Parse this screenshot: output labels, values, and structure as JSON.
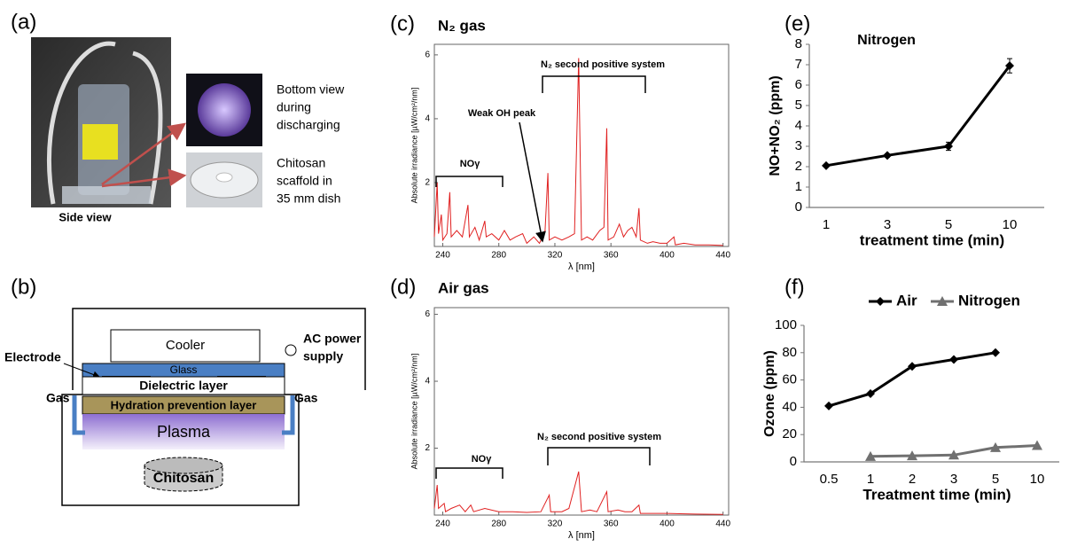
{
  "figure": {
    "panel_a": {
      "label": "(a)",
      "side_view": "Side view",
      "bottom_view": [
        "Bottom view",
        "during",
        "discharging"
      ],
      "dish": [
        "Chitosan",
        "scaffold in",
        "35 mm dish"
      ]
    },
    "panel_b": {
      "label": "(b)",
      "cooler": "Cooler",
      "power": [
        "AC power",
        "supply"
      ],
      "electrode": "Electrode",
      "glass": "Glass",
      "dielectric": "Dielectric layer",
      "gas_left": "Gas",
      "gas_right": "Gas",
      "hydration": "Hydration prevention layer",
      "plasma": "Plasma",
      "chitosan": "Chitosan"
    }
  },
  "chart_data": [
    {
      "type": "spectrum",
      "label": "(c)",
      "title": "N₂ gas",
      "y_label": "Absolute irradiance [µW/cm²/nm]",
      "x_label": "λ [nm]",
      "annotations": [
        "N₂ second positive system",
        "Weak OH peak",
        "NOγ"
      ],
      "xlim": [
        234,
        444
      ],
      "xticks": [
        240,
        280,
        320,
        360,
        400,
        440
      ],
      "ylim": [
        0,
        6.33
      ],
      "yticks": [
        2,
        4,
        6
      ],
      "color": "#e02020",
      "x": [
        234,
        236,
        237,
        239,
        240,
        243,
        245,
        246,
        250,
        254,
        258,
        259,
        263,
        266,
        270,
        271,
        275,
        280,
        284,
        288,
        292,
        297,
        300,
        305,
        309,
        313,
        315,
        316,
        320,
        325,
        330,
        334,
        337,
        339,
        343,
        347,
        352,
        355,
        357,
        358,
        362,
        366,
        369,
        372,
        375,
        378,
        380,
        381,
        386,
        390,
        395,
        400,
        405,
        406,
        412,
        420,
        430,
        440
      ],
      "values": [
        0.3,
        2.0,
        0.4,
        1.0,
        0.2,
        0.4,
        1.7,
        0.3,
        0.5,
        0.3,
        1.3,
        0.3,
        0.6,
        0.2,
        0.8,
        0.3,
        0.4,
        0.2,
        0.5,
        0.2,
        0.3,
        0.4,
        0.1,
        0.3,
        0.1,
        0.5,
        2.3,
        0.2,
        0.3,
        0.2,
        0.3,
        0.4,
        5.9,
        0.2,
        0.3,
        0.2,
        0.5,
        0.6,
        3.7,
        0.2,
        0.3,
        0.7,
        0.3,
        0.5,
        0.6,
        0.3,
        1.2,
        0.2,
        0.1,
        0.15,
        0.1,
        0.1,
        0.3,
        0.05,
        0.1,
        0.05,
        0.05,
        0.03
      ]
    },
    {
      "type": "spectrum",
      "label": "(d)",
      "title": "Air gas",
      "y_label": "Absolute irradiance [µW/cm²/nm]",
      "x_label": "λ [nm]",
      "annotations": [
        "N₂ second positive system",
        "NOγ"
      ],
      "xlim": [
        234,
        444
      ],
      "xticks": [
        240,
        280,
        320,
        360,
        400,
        440
      ],
      "ylim": [
        0,
        6.2
      ],
      "yticks": [
        2,
        4,
        6
      ],
      "color": "#e02020",
      "x": [
        234,
        236,
        237,
        241,
        242,
        246,
        252,
        256,
        260,
        262,
        270,
        280,
        290,
        300,
        310,
        316,
        317,
        325,
        330,
        337,
        339,
        345,
        350,
        357,
        358,
        365,
        370,
        375,
        380,
        381,
        390,
        400,
        420,
        440
      ],
      "values": [
        0.2,
        0.9,
        0.2,
        0.35,
        0.1,
        0.2,
        0.3,
        0.1,
        0.3,
        0.1,
        0.2,
        0.1,
        0.1,
        0.08,
        0.1,
        0.6,
        0.1,
        0.1,
        0.2,
        1.3,
        0.1,
        0.15,
        0.1,
        0.7,
        0.1,
        0.15,
        0.1,
        0.1,
        0.3,
        0.05,
        0.05,
        0.05,
        0.03,
        0.02
      ]
    },
    {
      "type": "line",
      "label": "(e)",
      "title": "Nitrogen",
      "y_label": "NO+NO₂ (ppm)",
      "x_label": "treatment time (min)",
      "categories": [
        "1",
        "3",
        "5",
        "10"
      ],
      "series": [
        {
          "color": "#000000",
          "marker": "diamond",
          "values": [
            2.05,
            2.55,
            3.0,
            6.95
          ],
          "errors": [
            0.05,
            0.08,
            0.2,
            0.35
          ]
        }
      ],
      "ylim": [
        0,
        8
      ],
      "yticks": [
        0,
        1,
        2,
        3,
        4,
        5,
        6,
        7,
        8
      ]
    },
    {
      "type": "line",
      "label": "(f)",
      "y_label": "Ozone (ppm)",
      "x_label": "Treatment time (min)",
      "categories": [
        "0.5",
        "1",
        "2",
        "3",
        "5",
        "10"
      ],
      "series": [
        {
          "name": "Air",
          "color": "#000000",
          "marker": "diamond",
          "values": [
            41,
            50,
            70,
            75,
            80,
            null
          ]
        },
        {
          "name": "Nitrogen",
          "color": "#707070",
          "marker": "triangle",
          "values": [
            null,
            4,
            4.5,
            5,
            10.5,
            12
          ]
        }
      ],
      "ylim": [
        0,
        100
      ],
      "yticks": [
        0,
        20,
        40,
        60,
        80,
        100
      ],
      "legend": "top"
    }
  ]
}
